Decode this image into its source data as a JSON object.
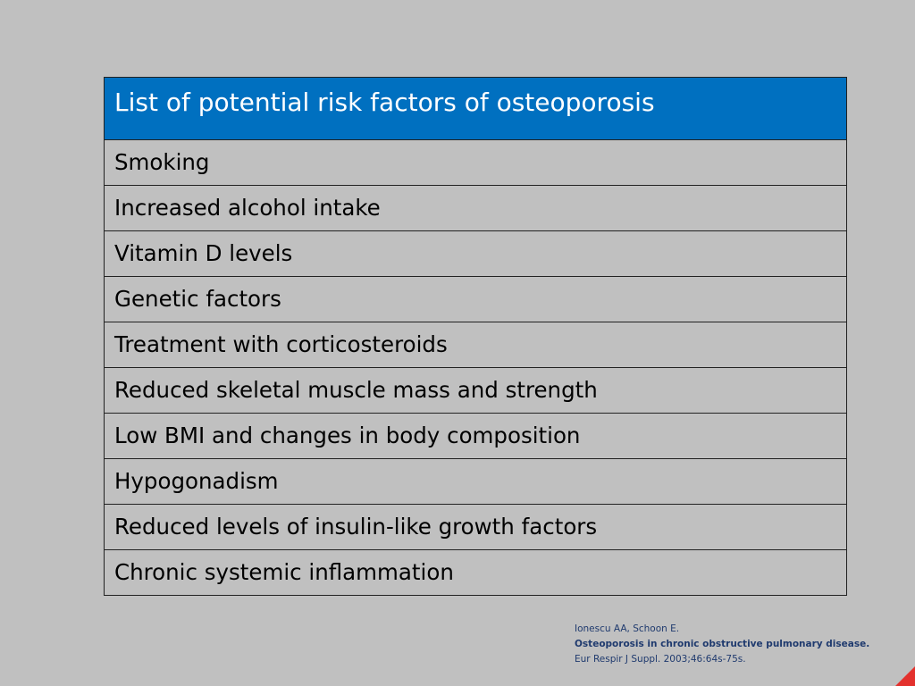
{
  "table": {
    "header": "List of potential risk factors of osteoporosis",
    "rows": [
      "Smoking",
      "Increased alcohol intake",
      "Vitamin D levels",
      "Genetic factors",
      "Treatment with corticosteroids",
      "Reduced skeletal muscle mass and strength",
      "Low BMI and changes in body composition",
      "Hypogonadism",
      "Reduced levels of insulin-like growth factors",
      "Chronic systemic inflammation"
    ]
  },
  "citation": {
    "authors": "Ionescu AA, Schoon E.",
    "title": "Osteoporosis in chronic obstructive pulmonary disease.",
    "journal": "Eur Respir J Suppl. 2003;46:64s-75s."
  },
  "colors": {
    "background": "#c0c0c0",
    "header_fill": "#0070c0",
    "citation_text": "#1f3a6e",
    "corner_accent": "#e3312d"
  }
}
